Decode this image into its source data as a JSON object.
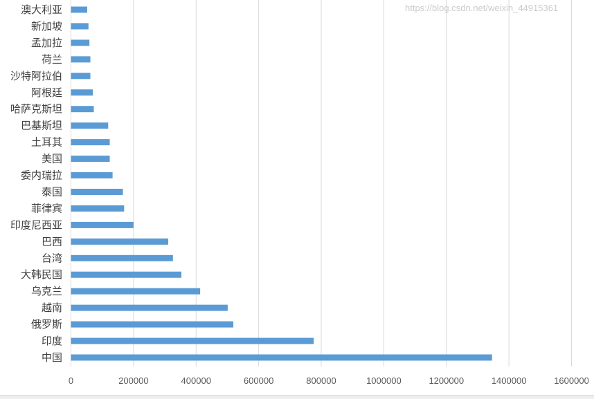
{
  "chart_data": {
    "type": "bar",
    "orientation": "horizontal",
    "categories": [
      "澳大利亚",
      "新加坡",
      "孟加拉",
      "荷兰",
      "沙特阿拉伯",
      "阿根廷",
      "哈萨克斯坦",
      "巴基斯坦",
      "土耳其",
      "美国",
      "委内瑞拉",
      "泰国",
      "菲律宾",
      "印度尼西亚",
      "巴西",
      "台湾",
      "大韩民国",
      "乌克兰",
      "越南",
      "俄罗斯",
      "印度",
      "中国"
    ],
    "values": [
      52000,
      56000,
      59000,
      62000,
      62000,
      70000,
      73000,
      119000,
      124000,
      124000,
      133000,
      166000,
      170000,
      200000,
      311000,
      326000,
      353000,
      413000,
      501000,
      519000,
      776000,
      1346000
    ],
    "xlim": [
      0,
      1600000
    ],
    "x_ticks": [
      "0",
      "200000",
      "400000",
      "600000",
      "800000",
      "1000000",
      "1200000",
      "1400000",
      "1600000"
    ],
    "grid": "vertical",
    "bar_color": "#5b9bd5",
    "title": "",
    "xlabel": "",
    "ylabel": ""
  },
  "watermark": "https://blog.csdn.net/weixin_44915361"
}
